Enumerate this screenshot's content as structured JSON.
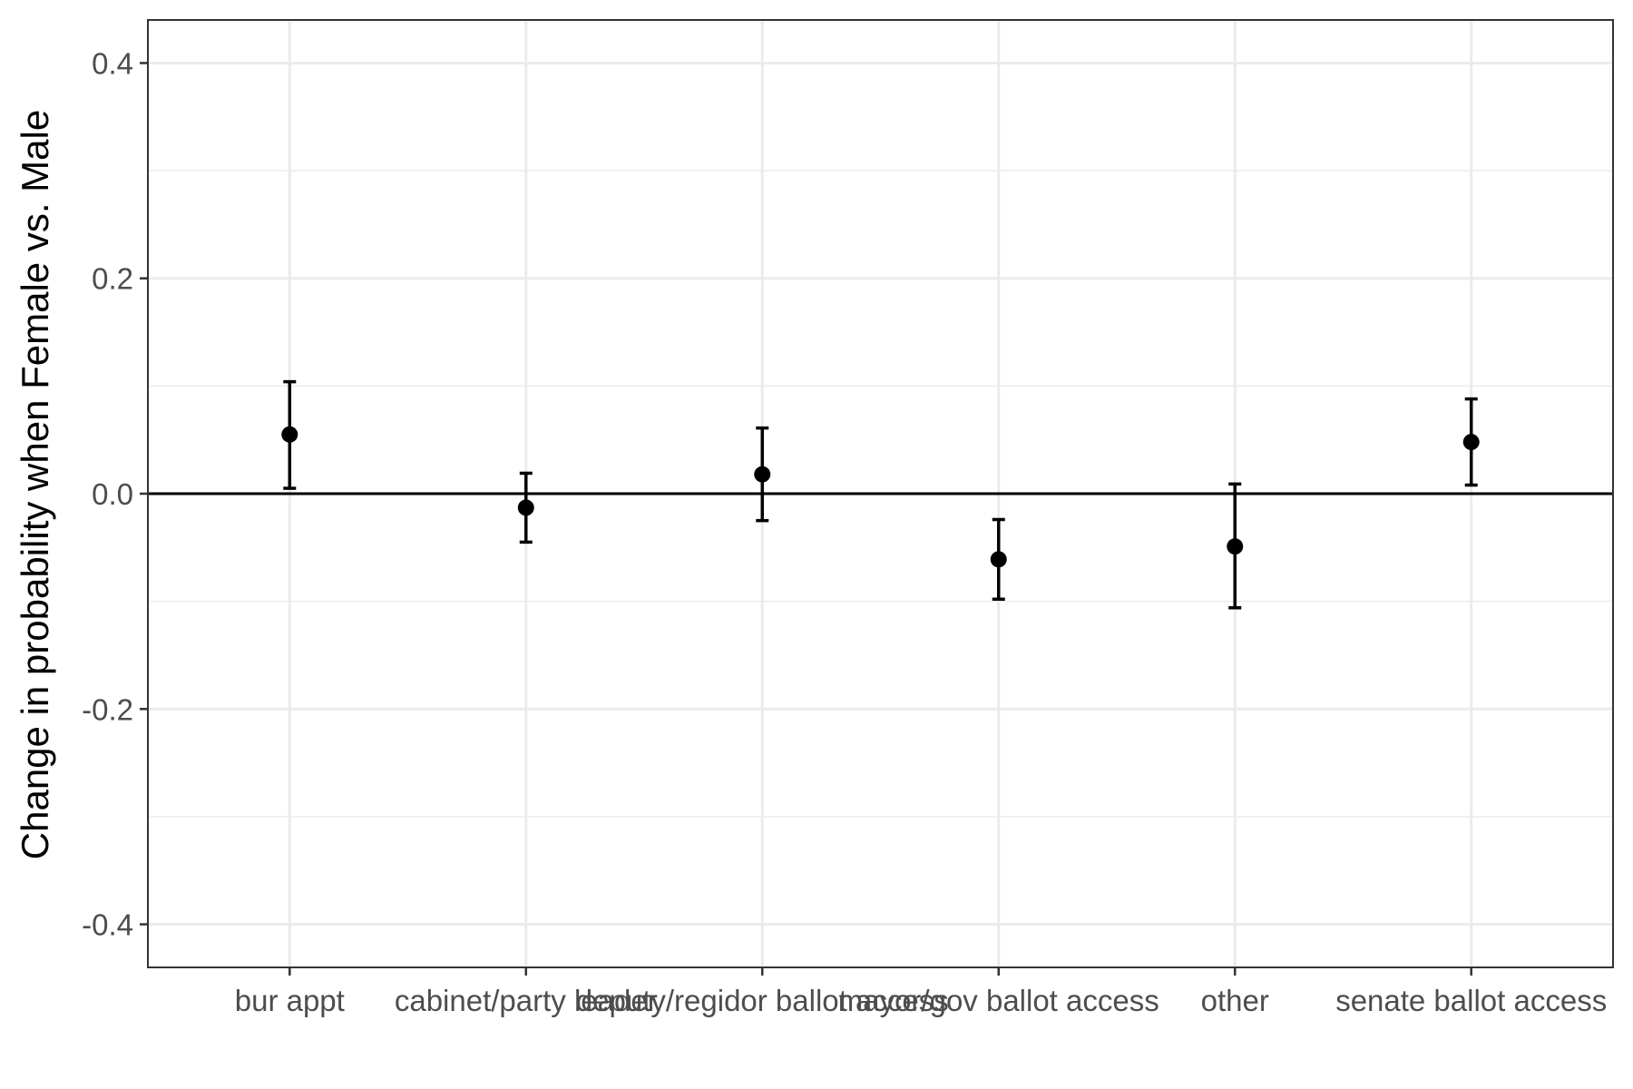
{
  "chart_data": {
    "type": "scatter",
    "subtype": "point-with-error-bars",
    "title": "",
    "xlabel": "",
    "ylabel": "Change in probability when Female vs. Male",
    "ylim": [
      -0.44,
      0.44
    ],
    "yticks": [
      -0.4,
      -0.2,
      0.0,
      0.2,
      0.4
    ],
    "ytick_labels": [
      "-0.4",
      "-0.2",
      "0.0",
      "0.2",
      "0.4"
    ],
    "categories": [
      "bur appt",
      "cabinet/party leader",
      "deputy/regidor ballot access",
      "mayor/gov ballot access",
      "other",
      "senate ballot access"
    ],
    "values": [
      0.055,
      -0.013,
      0.018,
      -0.061,
      -0.049,
      0.048
    ],
    "lower": [
      0.005,
      -0.045,
      -0.025,
      -0.098,
      -0.106,
      0.008
    ],
    "upper": [
      0.104,
      0.019,
      0.061,
      -0.024,
      0.009,
      0.088
    ],
    "reference_line": 0,
    "grid": true,
    "theme": "bw",
    "colors": {
      "point": "#000000",
      "grid": "#ebebeb",
      "panel_border": "#333333",
      "tick_text": "#4d4d4d"
    }
  }
}
